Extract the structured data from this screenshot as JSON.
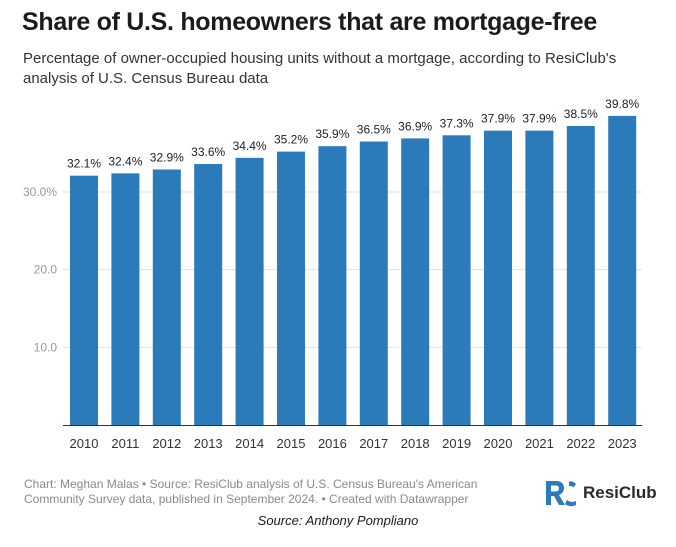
{
  "title": "Share of U.S. homeowners that are mortgage-free",
  "subtitle": "Percentage of owner-occupied housing units without a mortgage, according to ResiClub's analysis of U.S. Census Bureau data",
  "footer": "Chart: Meghan Malas • Source: ResiClub analysis of U.S. Census Bureau's American Community Survey data, published in September 2024. • Created with Datawrapper",
  "brand": {
    "name": "ResiClub",
    "mark_letters": "RC",
    "icon": "resiclub-logo-icon"
  },
  "credit": "Source: Anthony Pompliano",
  "colors": {
    "bar": "#2b7bba",
    "grid": "#e2e2e2",
    "tick_text": "#999999",
    "label_text": "#222222",
    "logo_mark": "#2b7bba"
  },
  "chart_data": {
    "type": "bar",
    "categories": [
      "2010",
      "2011",
      "2012",
      "2013",
      "2014",
      "2015",
      "2016",
      "2017",
      "2018",
      "2019",
      "2020",
      "2021",
      "2022",
      "2023"
    ],
    "values": [
      32.1,
      32.4,
      32.9,
      33.6,
      34.4,
      35.2,
      35.9,
      36.5,
      36.9,
      37.3,
      37.9,
      37.9,
      38.5,
      39.8
    ],
    "value_labels": [
      "32.1%",
      "32.4%",
      "32.9%",
      "33.6%",
      "34.4%",
      "35.2%",
      "35.9%",
      "36.5%",
      "36.9%",
      "37.3%",
      "37.9%",
      "37.9%",
      "38.5%",
      "39.8%"
    ],
    "y_ticks": [
      10,
      20,
      30
    ],
    "y_tick_labels": [
      "10.0",
      "20.0",
      "30.0%"
    ],
    "ylim": [
      0,
      40
    ],
    "grid": true,
    "xlabel": "",
    "ylabel": ""
  }
}
